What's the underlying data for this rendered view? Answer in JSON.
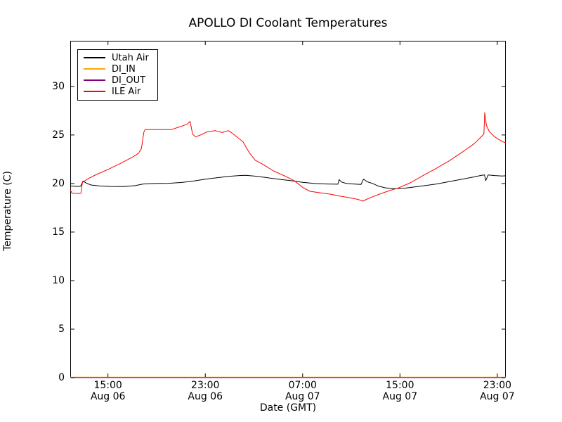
{
  "chart_data": {
    "type": "line",
    "title": "APOLLO DI Coolant Temperatures",
    "xlabel": "Date (GMT)",
    "ylabel": "Temperature (C)",
    "x_unit": "hours_since_Aug06_0000_GMT",
    "xlim": [
      11.9,
      47.7
    ],
    "ylim": [
      0,
      34.7
    ],
    "grid": false,
    "legend_position": "upper left",
    "yticks": [
      0,
      5,
      10,
      15,
      20,
      25,
      30
    ],
    "xticks": [
      {
        "hour": 15,
        "time": "15:00",
        "date": "Aug 06"
      },
      {
        "hour": 23,
        "time": "23:00",
        "date": "Aug 06"
      },
      {
        "hour": 31,
        "time": "07:00",
        "date": "Aug 07"
      },
      {
        "hour": 39,
        "time": "15:00",
        "date": "Aug 07"
      },
      {
        "hour": 47,
        "time": "23:00",
        "date": "Aug 07"
      }
    ],
    "series": [
      {
        "name": "Utah Air",
        "color": "#000000",
        "points": [
          [
            11.9,
            19.75
          ],
          [
            12.5,
            19.7
          ],
          [
            12.75,
            19.72
          ],
          [
            12.95,
            20.25
          ],
          [
            13.2,
            20.05
          ],
          [
            13.6,
            19.85
          ],
          [
            14.3,
            19.75
          ],
          [
            15.2,
            19.7
          ],
          [
            16.3,
            19.68
          ],
          [
            17.2,
            19.78
          ],
          [
            17.9,
            19.95
          ],
          [
            18.8,
            20.0
          ],
          [
            20.0,
            20.02
          ],
          [
            21.0,
            20.1
          ],
          [
            22.0,
            20.25
          ],
          [
            23.0,
            20.45
          ],
          [
            24.0,
            20.6
          ],
          [
            25.0,
            20.75
          ],
          [
            25.8,
            20.82
          ],
          [
            26.3,
            20.85
          ],
          [
            27.0,
            20.78
          ],
          [
            28.0,
            20.62
          ],
          [
            29.0,
            20.45
          ],
          [
            30.0,
            20.3
          ],
          [
            31.0,
            20.12
          ],
          [
            32.0,
            20.0
          ],
          [
            33.0,
            19.95
          ],
          [
            33.9,
            19.93
          ],
          [
            34.0,
            20.4
          ],
          [
            34.2,
            20.15
          ],
          [
            34.6,
            20.0
          ],
          [
            35.2,
            19.95
          ],
          [
            35.8,
            19.9
          ],
          [
            36.0,
            20.45
          ],
          [
            36.3,
            20.18
          ],
          [
            36.8,
            19.98
          ],
          [
            37.2,
            19.75
          ],
          [
            37.8,
            19.55
          ],
          [
            38.5,
            19.48
          ],
          [
            39.3,
            19.5
          ],
          [
            40.0,
            19.62
          ],
          [
            41.0,
            19.78
          ],
          [
            42.0,
            19.95
          ],
          [
            43.0,
            20.18
          ],
          [
            44.0,
            20.42
          ],
          [
            45.0,
            20.65
          ],
          [
            45.7,
            20.85
          ],
          [
            45.95,
            20.88
          ],
          [
            46.05,
            20.3
          ],
          [
            46.25,
            20.88
          ],
          [
            46.8,
            20.82
          ],
          [
            47.4,
            20.78
          ],
          [
            47.7,
            20.8
          ]
        ]
      },
      {
        "name": "DI_IN",
        "color": "#ffa500",
        "points": [
          [
            11.9,
            0
          ],
          [
            47.7,
            0
          ]
        ]
      },
      {
        "name": "DI_OUT",
        "color": "#800080",
        "points": [
          [
            11.9,
            0
          ],
          [
            47.7,
            0
          ]
        ]
      },
      {
        "name": "ILE Air",
        "color": "#ff0000",
        "points": [
          [
            11.9,
            19.35
          ],
          [
            12.05,
            19.0
          ],
          [
            12.7,
            18.98
          ],
          [
            12.78,
            19.0
          ],
          [
            12.9,
            20.1
          ],
          [
            13.3,
            20.45
          ],
          [
            14.0,
            20.9
          ],
          [
            15.0,
            21.45
          ],
          [
            16.0,
            22.05
          ],
          [
            17.0,
            22.7
          ],
          [
            17.5,
            23.1
          ],
          [
            17.75,
            23.6
          ],
          [
            17.95,
            25.3
          ],
          [
            18.05,
            25.55
          ],
          [
            20.2,
            25.55
          ],
          [
            20.8,
            25.8
          ],
          [
            21.5,
            26.1
          ],
          [
            21.75,
            26.4
          ],
          [
            21.95,
            25.1
          ],
          [
            22.2,
            24.8
          ],
          [
            22.6,
            25.0
          ],
          [
            23.1,
            25.3
          ],
          [
            23.8,
            25.45
          ],
          [
            24.4,
            25.25
          ],
          [
            24.9,
            25.45
          ],
          [
            25.3,
            25.1
          ],
          [
            26.1,
            24.3
          ],
          [
            26.6,
            23.2
          ],
          [
            27.1,
            22.4
          ],
          [
            27.7,
            22.0
          ],
          [
            28.6,
            21.3
          ],
          [
            29.5,
            20.8
          ],
          [
            30.3,
            20.3
          ],
          [
            31.0,
            19.6
          ],
          [
            31.6,
            19.2
          ],
          [
            32.4,
            19.05
          ],
          [
            33.3,
            18.9
          ],
          [
            34.1,
            18.7
          ],
          [
            35.0,
            18.5
          ],
          [
            35.6,
            18.35
          ],
          [
            35.95,
            18.18
          ],
          [
            36.3,
            18.4
          ],
          [
            36.7,
            18.6
          ],
          [
            37.3,
            18.9
          ],
          [
            38.2,
            19.3
          ],
          [
            38.9,
            19.55
          ],
          [
            39.9,
            20.1
          ],
          [
            40.8,
            20.75
          ],
          [
            41.9,
            21.5
          ],
          [
            43.0,
            22.3
          ],
          [
            44.2,
            23.3
          ],
          [
            45.1,
            24.1
          ],
          [
            45.7,
            24.85
          ],
          [
            45.9,
            25.1
          ],
          [
            45.97,
            27.3
          ],
          [
            46.1,
            26.0
          ],
          [
            46.35,
            25.35
          ],
          [
            46.7,
            24.9
          ],
          [
            47.1,
            24.55
          ],
          [
            47.45,
            24.3
          ],
          [
            47.7,
            24.2
          ]
        ]
      }
    ]
  }
}
